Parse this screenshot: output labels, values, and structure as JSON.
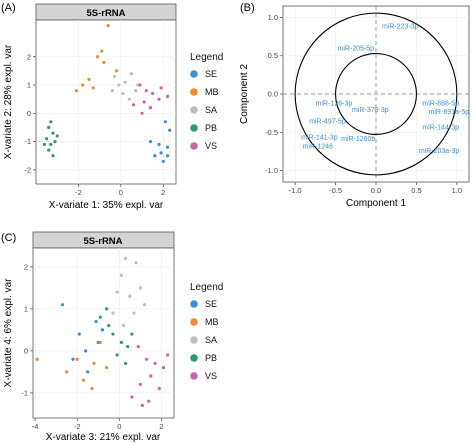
{
  "panel_labels": [
    "(A)",
    "(B)",
    "(C)"
  ],
  "colors": {
    "SE": "#3a8fd6",
    "MB": "#ef8b2c",
    "SA": "#bdbdbd",
    "PB": "#2e9a6b",
    "VS": "#c764b0",
    "circle": "#000000",
    "dashed": "#9a9a9a",
    "text_blue": "#3a8fd6"
  },
  "chart_data": [
    {
      "type": "scatter",
      "panel": "(A)",
      "title": "5S-rRNA",
      "xlabel": "X-variate 1: 35% expl. var",
      "ylabel": "X-variate 2: 28% expl. var",
      "xlim": [
        -4,
        2.6
      ],
      "ylim": [
        -2.5,
        3.3
      ],
      "xticks": [
        "-2",
        "0",
        "2"
      ],
      "yticks": [
        "-2",
        "-1",
        "0",
        "1",
        "2"
      ],
      "legend_title": "Legend",
      "legend": [
        "SE",
        "MB",
        "SA",
        "PB",
        "VS"
      ],
      "series": [
        {
          "name": "SE",
          "points": [
            [
              1.4,
              -1.0
            ],
            [
              1.8,
              -1.1
            ],
            [
              2.2,
              -1.2
            ],
            [
              2.3,
              -0.6
            ],
            [
              2.1,
              -0.3
            ],
            [
              1.9,
              -1.4
            ],
            [
              2.2,
              -1.5
            ],
            [
              1.6,
              -1.5
            ],
            [
              2.0,
              -1.7
            ]
          ]
        },
        {
          "name": "MB",
          "points": [
            [
              -0.6,
              3.1
            ],
            [
              -0.9,
              2.2
            ],
            [
              -1.1,
              2.0
            ],
            [
              -0.8,
              1.8
            ],
            [
              -1.5,
              1.2
            ],
            [
              -1.8,
              1.0
            ],
            [
              -1.3,
              0.9
            ],
            [
              -2.1,
              0.8
            ],
            [
              -0.2,
              1.5
            ]
          ]
        },
        {
          "name": "SA",
          "points": [
            [
              -0.3,
              1.3
            ],
            [
              -0.1,
              1.0
            ],
            [
              0.2,
              1.1
            ],
            [
              0.5,
              1.4
            ],
            [
              0.8,
              1.0
            ],
            [
              0.1,
              0.7
            ],
            [
              -0.4,
              0.8
            ],
            [
              0.4,
              0.5
            ],
            [
              0.7,
              0.8
            ]
          ]
        },
        {
          "name": "PB",
          "points": [
            [
              -3.3,
              -0.3
            ],
            [
              -3.4,
              -0.5
            ],
            [
              -3.2,
              -0.7
            ],
            [
              -3.5,
              -0.9
            ],
            [
              -3.3,
              -1.1
            ],
            [
              -3.1,
              -1.0
            ],
            [
              -3.4,
              -1.3
            ],
            [
              -3.2,
              -1.5
            ],
            [
              -3.6,
              -1.1
            ],
            [
              -3.0,
              -0.8
            ]
          ]
        },
        {
          "name": "VS",
          "points": [
            [
              0.9,
              1.0
            ],
            [
              1.2,
              0.8
            ],
            [
              1.5,
              0.7
            ],
            [
              1.8,
              0.5
            ],
            [
              1.1,
              0.4
            ],
            [
              0.6,
              0.3
            ],
            [
              1.4,
              0.2
            ],
            [
              1.9,
              0.9
            ],
            [
              2.2,
              0.6
            ],
            [
              1.0,
              0.0
            ]
          ]
        }
      ]
    },
    {
      "type": "scatter",
      "panel": "(B)",
      "title": "",
      "xlabel": "Component 1",
      "ylabel": "Component 2",
      "xlim": [
        -1.15,
        1.15
      ],
      "ylim": [
        -1.15,
        1.15
      ],
      "xticks": [
        "-1.0",
        "-0.5",
        "0.0",
        "0.5",
        "1.0"
      ],
      "yticks": [
        "-1.0",
        "-0.5",
        "0.0",
        "0.5",
        "1.0"
      ],
      "circles": [
        1.0,
        0.5
      ],
      "labels": [
        {
          "text": "miR-223-3p",
          "x": 0.3,
          "y": 0.89
        },
        {
          "text": "miR-205-5p",
          "x": -0.25,
          "y": 0.6
        },
        {
          "text": "miR-126-3p",
          "x": -0.52,
          "y": -0.12
        },
        {
          "text": "miR-378-3p",
          "x": -0.07,
          "y": -0.2
        },
        {
          "text": "miR-888-5p",
          "x": 0.8,
          "y": -0.12
        },
        {
          "text": "miR-497-5p",
          "x": -0.6,
          "y": -0.35
        },
        {
          "text": "miR-891a-5p",
          "x": 0.9,
          "y": -0.23
        },
        {
          "text": "miR-144-3p",
          "x": 0.8,
          "y": -0.43
        },
        {
          "text": "miR-141-3p",
          "x": -0.7,
          "y": -0.56
        },
        {
          "text": "miR-1260b",
          "x": -0.22,
          "y": -0.58
        },
        {
          "text": "miR-1246",
          "x": -0.72,
          "y": -0.68
        },
        {
          "text": "miR-203a-3p",
          "x": 0.78,
          "y": -0.74
        }
      ]
    },
    {
      "type": "scatter",
      "panel": "(C)",
      "title": "5S-rRNA",
      "xlabel": "X-variate 3: 21% expl. var",
      "ylabel": "X-variate 4: 6% expl. var",
      "xlim": [
        -4.1,
        2.6
      ],
      "ylim": [
        -1.6,
        2.45
      ],
      "xticks": [
        "-4",
        "-2",
        "0",
        "2"
      ],
      "yticks": [
        "-1",
        "0",
        "1",
        "2"
      ],
      "legend_title": "Legend",
      "legend": [
        "SE",
        "MB",
        "SA",
        "PB",
        "VS"
      ],
      "series": [
        {
          "name": "SE",
          "points": [
            [
              -2.7,
              1.1
            ],
            [
              -1.9,
              0.4
            ],
            [
              -1.6,
              0.0
            ],
            [
              -1.1,
              0.7
            ],
            [
              -1.5,
              -0.5
            ],
            [
              -2.2,
              -0.2
            ],
            [
              -1.0,
              0.2
            ]
          ]
        },
        {
          "name": "MB",
          "points": [
            [
              -3.9,
              -0.2
            ],
            [
              -2.5,
              -0.5
            ],
            [
              -1.7,
              -0.7
            ],
            [
              -1.2,
              -0.3
            ],
            [
              -0.6,
              -0.4
            ],
            [
              -1.3,
              -0.9
            ],
            [
              -2.0,
              -0.2
            ],
            [
              -0.9,
              0.2
            ]
          ]
        },
        {
          "name": "SA",
          "points": [
            [
              0.3,
              2.2
            ],
            [
              0.1,
              1.8
            ],
            [
              0.8,
              2.1
            ],
            [
              -0.1,
              1.4
            ],
            [
              0.5,
              1.3
            ],
            [
              1.0,
              1.5
            ],
            [
              -0.3,
              0.9
            ],
            [
              0.7,
              0.9
            ],
            [
              0.2,
              0.6
            ],
            [
              1.2,
              1.1
            ]
          ]
        },
        {
          "name": "PB",
          "points": [
            [
              -0.9,
              0.8
            ],
            [
              -0.6,
              1.0
            ],
            [
              -0.5,
              0.6
            ],
            [
              -0.3,
              0.4
            ],
            [
              0.1,
              0.2
            ],
            [
              -0.1,
              -0.1
            ],
            [
              0.4,
              0.1
            ],
            [
              0.6,
              0.4
            ],
            [
              -0.8,
              0.5
            ],
            [
              0.3,
              -0.3
            ]
          ]
        },
        {
          "name": "VS",
          "points": [
            [
              0.9,
              0.1
            ],
            [
              1.3,
              -0.2
            ],
            [
              1.7,
              -0.3
            ],
            [
              2.1,
              -0.4
            ],
            [
              1.5,
              -0.6
            ],
            [
              1.0,
              -0.8
            ],
            [
              0.6,
              -1.1
            ],
            [
              1.4,
              -1.2
            ],
            [
              1.9,
              -0.9
            ],
            [
              1.1,
              -1.3
            ],
            [
              2.3,
              -0.1
            ]
          ]
        }
      ]
    }
  ]
}
